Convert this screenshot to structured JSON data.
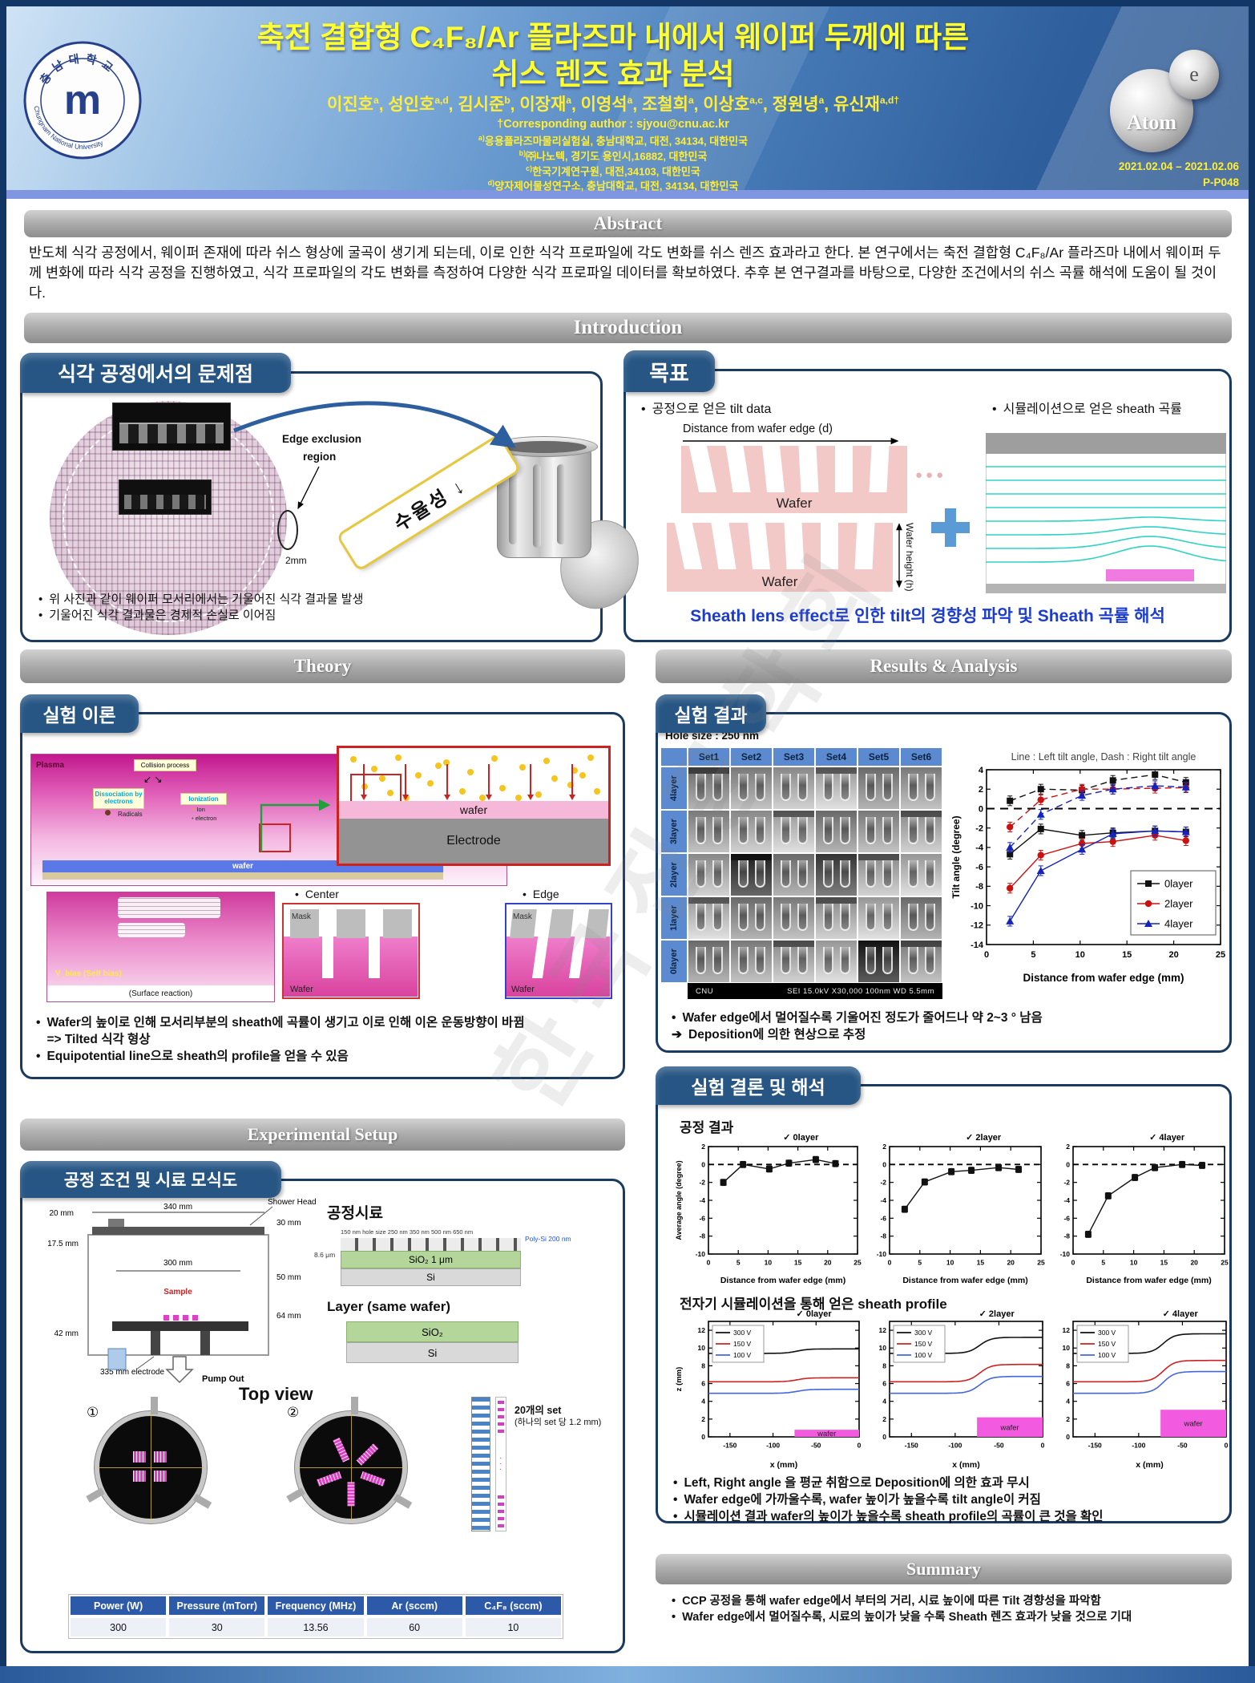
{
  "watermark": "한국진공학회",
  "header": {
    "title_line1": "축전 결합형 C₄F₈/Ar 플라즈마 내에서 웨이퍼 두께에 따른",
    "title_line2": "쉬스 렌즈 효과 분석",
    "authors": [
      {
        "name": "이진호",
        "sup": "a"
      },
      {
        "name": "성인호",
        "sup": "a,d"
      },
      {
        "name": "김시준",
        "sup": "b"
      },
      {
        "name": "이장재",
        "sup": "a"
      },
      {
        "name": "이영석",
        "sup": "a"
      },
      {
        "name": "조철희",
        "sup": "a"
      },
      {
        "name": "이상호",
        "sup": "a,c"
      },
      {
        "name": "정원녕",
        "sup": "a"
      },
      {
        "name": "유신재",
        "sup": "a,d†"
      }
    ],
    "corresponding": "†Corresponding author : sjyou@cnu.ac.kr",
    "affiliations": [
      {
        "sup": "a)",
        "text": "응용플라즈마물리실험실, 충남대학교, 대전, 34134, 대한민국"
      },
      {
        "sup": "b)",
        "text": "㈜나노텍, 경기도 용인시,16882, 대한민국"
      },
      {
        "sup": "c)",
        "text": "한국기계연구원, 대전,34103, 대한민국"
      },
      {
        "sup": "d)",
        "text": "양자제어물성연구소, 충남대학교, 대전, 34134, 대한민국"
      }
    ],
    "university_name_kr": "충남대학교",
    "university_name_en": "Chungnam National University",
    "atom_label": "Atom",
    "electron_label": "e",
    "dates": "2021.02.04 – 2021.02.06",
    "poster_id": "P-P048"
  },
  "abstract": {
    "heading": "Abstract",
    "text": "반도체 식각 공정에서, 웨이퍼 존재에 따라 쉬스 형상에 굴곡이 생기게 되는데, 이로 인한 식각 프로파일에 각도 변화를 쉬스 렌즈 효과라고 한다. 본 연구에서는 축전 결합형 C₄F₈/Ar 플라즈마 내에서 웨이퍼 두께 변화에 따라 식각 공정을 진행하였고, 식각 프로파일의 각도 변화를 측정하여 다양한 식각 프로파일 데이터를 확보하였다. 추후 본 연구결과를 바탕으로, 다양한 조건에서의 쉬스 곡률 해석에 도움이 될 것이다."
  },
  "introduction": {
    "heading": "Introduction",
    "problem": {
      "tab": "식각 공정에서의 문제점",
      "edge_exclusion_line1": "Edge exclusion",
      "edge_exclusion_line2": "region",
      "edge_width": "2mm",
      "banner": "수율성 ↓",
      "bullets": [
        {
          "m": "•",
          "t": "위 사진과 같이 웨이퍼 모서리에서는 기울어진 식각 결과물 발생"
        },
        {
          "m": "•",
          "t": "기울어진 식각 결과물은 경제적 손실로 이어짐"
        }
      ]
    },
    "goal": {
      "tab": "목표",
      "left_bullet": "공정으로 얻은 tilt data",
      "distance_label": "Distance from wafer edge (d)",
      "wafer_label_top": "Wafer",
      "wafer_label_bottom": "Wafer",
      "wafer_height_label": "Wafer height (h)",
      "right_bullet": "시뮬레이션으로 얻은 sheath 곡률",
      "conclusion": "Sheath lens effect로 인한 tilt의 경향성 파악 및 Sheath 곡률 해석"
    }
  },
  "theory": {
    "heading": "Theory",
    "tab": "실험 이론",
    "plasma_label": "Plasma",
    "collision_label": "Collision process",
    "dissociation_label": "Dissociation by electrons",
    "ionization_label": "Ionization",
    "radicals_label": "Radicals",
    "ion_label": "Ion",
    "electron_label": "electron",
    "wafer_bar_label": "wafer",
    "zoom_wafer_label": "wafer",
    "electrode_label": "Electrode",
    "self_bias_label": "V_bias (Self bias)",
    "surface_reaction_label": "(Surface reaction)",
    "center_label": "Center",
    "edge_label": "Edge",
    "mask_label": "Mask",
    "wafer_label": "Wafer",
    "bullets": [
      {
        "m": "•",
        "t": "Wafer의 높이로 인해 모서리부분의 sheath에 곡률이 생기고 이로 인해 이온 운동방향이 바뀜\n=> Tilted 식각 형상"
      },
      {
        "m": "•",
        "t": "Equipotential line으로 sheath의 profile을 얻을 수 있음"
      }
    ]
  },
  "setup": {
    "heading": "Experimental Setup",
    "tab": "공정 조건 및 시료 모식도",
    "chamber": {
      "d20": "20 mm",
      "d340": "340 mm",
      "shower": "Shower Head",
      "d30": "30 mm",
      "d175": "17.5 mm",
      "d300": "300 mm",
      "d50": "50 mm",
      "sample": "Sample",
      "d42": "42 mm",
      "d64": "64 mm",
      "electrode": "335 mm electrode",
      "pump": "Pump Out"
    },
    "sample_stack": {
      "title": "공정시료",
      "hole_labels": "150 nm hole size   250 nm   350 nm   500 nm   650 nm",
      "poly": "Poly-Si 200 nm",
      "depth": "8.6 μm",
      "sio2": "SiO₂ 1 μm",
      "si": "Si"
    },
    "layer_stack": {
      "title": "Layer (same wafer)",
      "sio2": "SiO₂",
      "si": "Si"
    },
    "top_view": {
      "title": "Top view",
      "n1": "①",
      "n2": "②",
      "note1": "20개의 set",
      "note2": "(하나의 set 당 1.2 mm)"
    },
    "table": {
      "headers": [
        "Power (W)",
        "Pressure (mTorr)",
        "Frequency (MHz)",
        "Ar (sccm)",
        "C₄F₈ (sccm)"
      ],
      "values": [
        "300",
        "30",
        "13.56",
        "60",
        "10"
      ]
    }
  },
  "results": {
    "heading": "Results & Analysis",
    "tab": "실험 결과",
    "hole_size": "Hole size : 250 nm",
    "sem": {
      "columns": [
        "Set1",
        "Set2",
        "Set3",
        "Set4",
        "Set5",
        "Set6"
      ],
      "rows": [
        "4layer",
        "3layer",
        "2layer",
        "1layer",
        "0layer"
      ],
      "info_left": "CNU",
      "info_right": "SEI    15.0kV   X30,000    100nm    WD 5.5mm"
    },
    "bullets": [
      {
        "m": "•",
        "t": "Wafer edge에서 멀어질수록 기울어진 정도가 줄어드나 약 2~3 ° 남음"
      },
      {
        "m": "➔",
        "t": "Deposition에 의한 현상으로 추정"
      }
    ]
  },
  "conclusion": {
    "tab": "실험 결론 및 해석",
    "process_title": "공정 결과",
    "sim_title": "전자기 시뮬레이션을 통해 얻은 sheath profile",
    "bullets": [
      {
        "m": "•",
        "t": "Left, Right angle 을 평균 취함으로 Deposition에 의한 효과 무시"
      },
      {
        "m": "•",
        "t": "Wafer edge에 가까울수록, wafer 높이가 높을수록 tilt angle이 커짐"
      },
      {
        "m": "•",
        "t": "시뮬레이션 결과 wafer의 높이가 높을수록 sheath profile의 곡률이 큰 것을 확인"
      }
    ]
  },
  "summary": {
    "heading": "Summary",
    "bullets": [
      {
        "m": "•",
        "t": "CCP 공정을 통해 wafer edge에서 부터의 거리, 시료 높이에 따른 Tilt 경향성을 파악함"
      },
      {
        "m": "•",
        "t": "Wafer edge에서 멀어질수록, 시료의 높이가 낮을 수록 Sheath 렌즈 효과가 낮을 것으로 기대"
      }
    ]
  },
  "chart_data": [
    {
      "id": "tilt_angle",
      "type": "line",
      "title": "Line : Left tilt angle, Dash : Right tilt angle",
      "xlabel": "Distance from wafer edge (mm)",
      "ylabel": "Tilt angle (degree)",
      "xlim": [
        0,
        25
      ],
      "ylim": [
        -14,
        4
      ],
      "xticks": [
        0,
        5,
        10,
        15,
        20,
        25
      ],
      "yticks": [
        -14,
        -12,
        -10,
        -8,
        -6,
        -4,
        -2,
        0,
        2,
        4
      ],
      "x": [
        2.5,
        5.8,
        10.2,
        13.5,
        18.0,
        21.3
      ],
      "yerr": 0.5,
      "zero_line": true,
      "legend": [
        "0layer",
        "2layer",
        "4layer"
      ],
      "series": [
        {
          "name": "0layer left",
          "color": "#111111",
          "marker": "square",
          "dash": false,
          "values": [
            -4.7,
            -2.1,
            -2.75,
            -2.5,
            -2.3,
            -2.4
          ]
        },
        {
          "name": "2layer left",
          "color": "#cc1111",
          "marker": "circle",
          "dash": false,
          "values": [
            -8.2,
            -4.8,
            -3.6,
            -3.4,
            -2.75,
            -3.3
          ]
        },
        {
          "name": "4layer left",
          "color": "#1522bb",
          "marker": "triangle",
          "dash": false,
          "values": [
            -11.6,
            -6.4,
            -4.2,
            -2.6,
            -2.3,
            -2.4
          ]
        },
        {
          "name": "0layer right",
          "color": "#111111",
          "marker": "square",
          "dash": true,
          "values": [
            0.8,
            2.0,
            1.9,
            2.9,
            3.5,
            2.7
          ]
        },
        {
          "name": "2layer right",
          "color": "#cc1111",
          "marker": "circle",
          "dash": true,
          "values": [
            -1.9,
            0.9,
            2.0,
            2.0,
            2.1,
            2.15
          ]
        },
        {
          "name": "4layer right",
          "color": "#1522bb",
          "marker": "triangle",
          "dash": true,
          "values": [
            -4.0,
            -0.6,
            1.35,
            2.0,
            2.35,
            2.2
          ]
        }
      ]
    },
    {
      "id": "process_average_angle",
      "type": "line",
      "panel_prefix": "✓",
      "xlabel": "Distance from wafer edge (mm)",
      "ylabel": "Average angle (degree)",
      "xlim": [
        0,
        25
      ],
      "ylim": [
        -10,
        2
      ],
      "xticks": [
        0,
        5,
        10,
        15,
        20,
        25
      ],
      "yticks": [
        -10,
        -8,
        -6,
        -4,
        -2,
        0,
        2
      ],
      "x": [
        2.5,
        5.8,
        10.2,
        13.5,
        18.0,
        21.3
      ],
      "yerr": 0.35,
      "zero_line": true,
      "panels": [
        {
          "label": "0layer",
          "values": [
            -2.0,
            0.0,
            -0.5,
            0.15,
            0.55,
            0.1
          ]
        },
        {
          "label": "2layer",
          "values": [
            -5.0,
            -1.95,
            -0.8,
            -0.65,
            -0.35,
            -0.55
          ]
        },
        {
          "label": "4layer",
          "values": [
            -7.8,
            -3.5,
            -1.45,
            -0.35,
            0.0,
            -0.1
          ]
        }
      ]
    },
    {
      "id": "sheath_profile",
      "type": "line",
      "panel_prefix": "✓",
      "xlabel": "x (mm)",
      "ylabel": "z (mm)",
      "xlim": [
        -175,
        0
      ],
      "ylim": [
        0,
        13
      ],
      "xticks": [
        -150,
        -100,
        -50,
        0
      ],
      "yticks": [
        0,
        2,
        4,
        6,
        8,
        10,
        12
      ],
      "legend": [
        "300 V",
        "150 V",
        "100 V"
      ],
      "colors": [
        "#111111",
        "#cc2222",
        "#4466dd"
      ],
      "wafer_span": [
        -75,
        0
      ],
      "wafer_label": "wafer",
      "panels": [
        {
          "label": "0layer",
          "wafer_height": 0.8,
          "curves": [
            {
              "base": 9.4,
              "top": 9.9
            },
            {
              "base": 6.2,
              "top": 6.65
            },
            {
              "base": 4.9,
              "top": 5.35
            }
          ]
        },
        {
          "label": "2layer",
          "wafer_height": 2.2,
          "curves": [
            {
              "base": 9.4,
              "top": 11.2
            },
            {
              "base": 6.2,
              "top": 8.15
            },
            {
              "base": 4.9,
              "top": 6.8
            }
          ]
        },
        {
          "label": "4layer",
          "wafer_height": 3.05,
          "curves": [
            {
              "base": 9.4,
              "top": 11.6
            },
            {
              "base": 6.2,
              "top": 8.6
            },
            {
              "base": 4.9,
              "top": 7.35
            }
          ]
        }
      ]
    }
  ]
}
